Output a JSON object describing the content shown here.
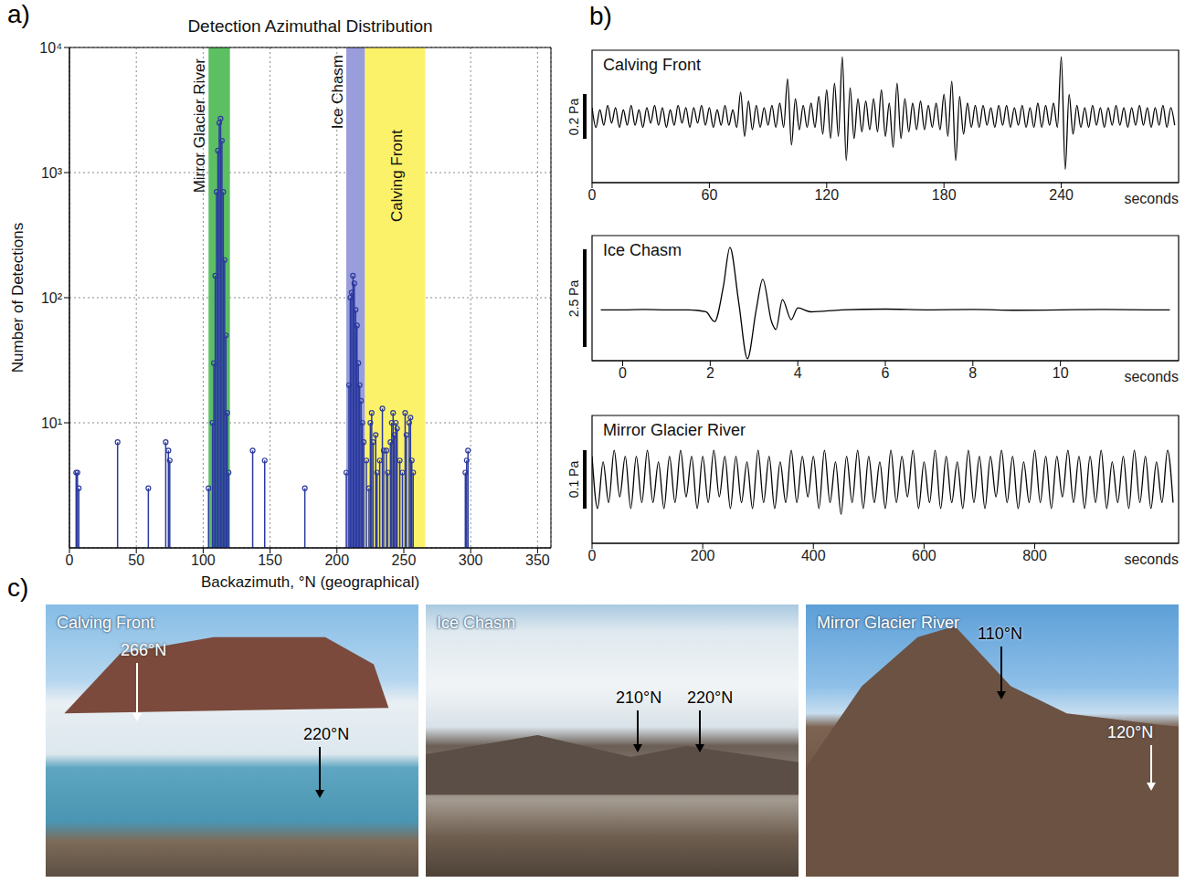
{
  "chart_data": [
    {
      "type": "stem",
      "panel": "a)",
      "title": "Detection Azimuthal Distribution",
      "x_label": "Backazimuth, °N (geographical)",
      "y_label": "Number of Detections",
      "x": [
        5,
        6,
        7,
        36,
        59,
        72,
        74,
        75,
        104,
        107,
        108,
        109,
        110,
        111,
        112,
        113,
        114,
        115,
        116,
        117,
        118,
        119,
        137,
        146,
        176,
        207,
        209,
        210,
        211,
        212,
        213,
        214,
        215,
        216,
        217,
        218,
        219,
        220,
        222,
        224,
        225,
        226,
        227,
        229,
        230,
        232,
        234,
        235,
        237,
        238,
        240,
        241,
        242,
        243,
        244,
        245,
        247,
        249,
        251,
        252,
        254,
        255,
        256,
        257,
        296,
        297,
        298
      ],
      "values": [
        4,
        4,
        3,
        7,
        3,
        7,
        6,
        5,
        3,
        10,
        30,
        150,
        700,
        1500,
        2500,
        2700,
        1800,
        700,
        200,
        50,
        12,
        4,
        6,
        5,
        3,
        4,
        20,
        100,
        110,
        150,
        130,
        80,
        60,
        30,
        20,
        15,
        10,
        7,
        5,
        3,
        10,
        12,
        7,
        8,
        4,
        5,
        13,
        6,
        6,
        4,
        7,
        10,
        12,
        8,
        10,
        9,
        5,
        4,
        12,
        8,
        10,
        11,
        5,
        4,
        4,
        5,
        6
      ],
      "color": "#2b3a9e",
      "marker": "circle",
      "xlim": [
        0,
        360
      ],
      "xticks": [
        0,
        50,
        100,
        150,
        200,
        250,
        300,
        350
      ],
      "ylim": [
        1,
        10000
      ],
      "yticks": [
        {
          "value": 10,
          "label": "10¹"
        },
        {
          "value": 100,
          "label": "10²"
        },
        {
          "value": 1000,
          "label": "10³"
        },
        {
          "value": 10000,
          "label": "10⁴"
        }
      ],
      "log": "y",
      "grid": true,
      "annotations": [
        {
          "text": "Mirror Glacier River",
          "range": [
            104,
            120
          ],
          "color": "#5cbf62"
        },
        {
          "text": "Ice Chasm",
          "range": [
            207,
            221
          ],
          "color": "#9a9ddc"
        },
        {
          "text": "Calving Front",
          "range": [
            221,
            266
          ],
          "color": "#fbf26a"
        }
      ]
    },
    {
      "type": "line",
      "panel": "b)",
      "title": "Calving Front",
      "x_label": "seconds",
      "color": "#000000",
      "tick_labels": "x",
      "xlim": [
        0,
        300
      ],
      "xticks": [
        0,
        60,
        120,
        180,
        240
      ],
      "ylim": [
        -0.3,
        0.3
      ],
      "scale_bar": {
        "value": 0.2,
        "label": "0.2 Pa"
      },
      "x": [
        0,
        2,
        4,
        6,
        8,
        10,
        12,
        14,
        16,
        18,
        20,
        22,
        24,
        26,
        28,
        30,
        32,
        34,
        36,
        38,
        40,
        42,
        44,
        46,
        48,
        50,
        52,
        54,
        56,
        58,
        60,
        62,
        64,
        66,
        68,
        70,
        72,
        74,
        76,
        78,
        80,
        82,
        84,
        86,
        88,
        90,
        92,
        94,
        96,
        98,
        100,
        102,
        104,
        106,
        108,
        110,
        112,
        114,
        116,
        118,
        120,
        122,
        124,
        126,
        128,
        130,
        132,
        134,
        136,
        138,
        140,
        142,
        144,
        146,
        148,
        150,
        152,
        154,
        156,
        158,
        160,
        162,
        164,
        166,
        168,
        170,
        172,
        174,
        176,
        178,
        180,
        182,
        184,
        186,
        188,
        190,
        192,
        194,
        196,
        198,
        200,
        202,
        204,
        206,
        208,
        210,
        212,
        214,
        216,
        218,
        220,
        222,
        224,
        226,
        228,
        230,
        232,
        234,
        236,
        238,
        240,
        242,
        244,
        246,
        248,
        250,
        252,
        254,
        256,
        258,
        260,
        262,
        264,
        266,
        268,
        270,
        272,
        274,
        276,
        278,
        280,
        282,
        284,
        286,
        288,
        290,
        292,
        294,
        296,
        298
      ],
      "values": [
        0.04,
        -0.05,
        0.03,
        -0.04,
        0.05,
        -0.03,
        0.04,
        -0.05,
        0.03,
        -0.04,
        0.05,
        -0.04,
        0.03,
        -0.05,
        0.04,
        -0.03,
        0.05,
        -0.04,
        0.04,
        -0.05,
        0.03,
        -0.04,
        0.05,
        -0.03,
        0.04,
        -0.05,
        0.04,
        -0.03,
        0.05,
        -0.04,
        0.04,
        -0.05,
        0.03,
        -0.04,
        0.05,
        -0.04,
        0.03,
        -0.05,
        0.11,
        -0.09,
        0.07,
        -0.06,
        0.05,
        -0.05,
        0.04,
        -0.04,
        0.05,
        -0.05,
        0.06,
        -0.05,
        0.17,
        -0.13,
        0.08,
        -0.06,
        0.05,
        -0.05,
        0.06,
        -0.05,
        0.09,
        -0.08,
        0.12,
        -0.1,
        0.15,
        -0.09,
        0.27,
        -0.2,
        0.13,
        -0.1,
        0.08,
        -0.07,
        0.07,
        -0.06,
        0.08,
        -0.07,
        0.12,
        -0.09,
        0.06,
        -0.14,
        0.15,
        -0.1,
        0.08,
        -0.07,
        0.06,
        -0.06,
        0.07,
        -0.06,
        0.05,
        -0.05,
        0.06,
        -0.06,
        0.1,
        -0.09,
        0.16,
        -0.2,
        0.09,
        -0.08,
        0.06,
        -0.05,
        0.05,
        -0.05,
        0.05,
        -0.04,
        0.04,
        -0.05,
        0.05,
        -0.04,
        0.05,
        -0.05,
        0.04,
        -0.04,
        0.05,
        -0.05,
        0.04,
        -0.05,
        0.06,
        -0.05,
        0.05,
        -0.04,
        0.06,
        -0.05,
        0.27,
        -0.24,
        0.1,
        -0.08,
        0.05,
        -0.05,
        0.04,
        -0.05,
        0.05,
        -0.04,
        0.04,
        -0.05,
        0.04,
        -0.04,
        0.05,
        -0.04,
        0.04,
        -0.05,
        0.04,
        -0.04,
        0.05,
        -0.04,
        0.04,
        -0.05,
        0.04,
        -0.04,
        0.05,
        -0.05,
        0.04,
        -0.04
      ]
    },
    {
      "type": "line",
      "title": "Ice Chasm",
      "x_label": "seconds",
      "color": "#000000",
      "tick_labels": "x",
      "xlim": [
        -0.7,
        12.7
      ],
      "xticks": [
        0,
        2,
        4,
        6,
        8,
        10
      ],
      "ylim": [
        -1.3,
        1.9
      ],
      "scale_bar": {
        "value": 2.5,
        "label": "2.5 Pa"
      },
      "x": [
        -0.5,
        0,
        0.5,
        1,
        1.5,
        1.9,
        2.1,
        2.3,
        2.45,
        2.65,
        2.85,
        3.05,
        3.2,
        3.4,
        3.5,
        3.65,
        3.85,
        4,
        4.3,
        5,
        6,
        7,
        8,
        9,
        10,
        11,
        12,
        12.5
      ],
      "values": [
        0,
        0,
        0.01,
        0,
        0,
        -0.05,
        -0.3,
        0.6,
        1.6,
        0.2,
        -1.25,
        0,
        0.78,
        -0.3,
        -0.5,
        0.26,
        -0.25,
        0.05,
        -0.05,
        0,
        0.02,
        0,
        0.01,
        -0.01,
        0,
        0.01,
        0,
        0
      ]
    },
    {
      "type": "line",
      "title": "Mirror Glacier River",
      "x_label": "seconds",
      "color": "#000000",
      "tick_labels": "x",
      "xlim": [
        0,
        1060
      ],
      "xticks": [
        0,
        200,
        400,
        600,
        800
      ],
      "ylim": [
        -0.11,
        0.11
      ],
      "scale_bar": {
        "value": 0.1,
        "label": "0.1 Pa"
      },
      "x": [
        0,
        10,
        20,
        30,
        40,
        50,
        60,
        70,
        80,
        90,
        100,
        110,
        120,
        130,
        140,
        150,
        160,
        170,
        180,
        190,
        200,
        210,
        220,
        230,
        240,
        250,
        260,
        270,
        280,
        290,
        300,
        310,
        320,
        330,
        340,
        350,
        360,
        370,
        380,
        390,
        400,
        410,
        420,
        430,
        440,
        450,
        460,
        470,
        480,
        490,
        500,
        510,
        520,
        530,
        540,
        550,
        560,
        570,
        580,
        590,
        600,
        610,
        620,
        630,
        640,
        650,
        660,
        670,
        680,
        690,
        700,
        710,
        720,
        730,
        740,
        750,
        760,
        770,
        780,
        790,
        800,
        810,
        820,
        830,
        840,
        850,
        860,
        870,
        880,
        890,
        900,
        910,
        920,
        930,
        940,
        950,
        960,
        970,
        980,
        990,
        1000,
        1010,
        1020,
        1030,
        1040,
        1050
      ],
      "values": [
        0.04,
        -0.05,
        0.03,
        -0.04,
        0.05,
        -0.03,
        0.04,
        -0.05,
        0.04,
        -0.04,
        0.05,
        -0.04,
        0.03,
        -0.05,
        0.04,
        -0.04,
        0.05,
        -0.03,
        0.04,
        -0.05,
        0.04,
        -0.04,
        0.05,
        -0.03,
        0.04,
        -0.05,
        0.04,
        -0.04,
        0.03,
        -0.05,
        0.05,
        -0.04,
        0.04,
        -0.05,
        0.03,
        -0.04,
        0.05,
        -0.04,
        0.04,
        -0.03,
        0.04,
        -0.05,
        0.05,
        -0.04,
        0.03,
        -0.06,
        0.04,
        -0.04,
        0.05,
        -0.05,
        0.04,
        -0.04,
        0.03,
        -0.05,
        0.05,
        -0.04,
        0.04,
        -0.03,
        0.05,
        -0.05,
        0.03,
        -0.04,
        0.05,
        -0.05,
        0.04,
        -0.04,
        0.03,
        -0.05,
        0.05,
        -0.04,
        0.04,
        -0.05,
        0.04,
        -0.03,
        0.05,
        -0.04,
        0.04,
        -0.05,
        0.03,
        -0.04,
        0.05,
        -0.04,
        0.04,
        -0.05,
        0.04,
        -0.03,
        0.05,
        -0.04,
        0.04,
        -0.05,
        0.04,
        -0.04,
        0.05,
        -0.05,
        0.03,
        -0.04,
        0.04,
        -0.05,
        0.05,
        -0.04,
        0.04,
        -0.05,
        0.03,
        -0.04,
        0.05,
        -0.04
      ]
    }
  ],
  "photos": {
    "panel": "c)",
    "items": [
      {
        "title": "Calving Front",
        "markers": [
          {
            "label": "266°N",
            "color": "#ffffff"
          },
          {
            "label": "220°N",
            "color": "#000000"
          }
        ]
      },
      {
        "title": "Ice Chasm",
        "markers": [
          {
            "label": "210°N",
            "color": "#000000"
          },
          {
            "label": "220°N",
            "color": "#000000"
          }
        ]
      },
      {
        "title": "Mirror Glacier River",
        "markers": [
          {
            "label": "110°N",
            "color": "#000000"
          },
          {
            "label": "120°N",
            "color": "#ffffff"
          }
        ]
      }
    ]
  }
}
